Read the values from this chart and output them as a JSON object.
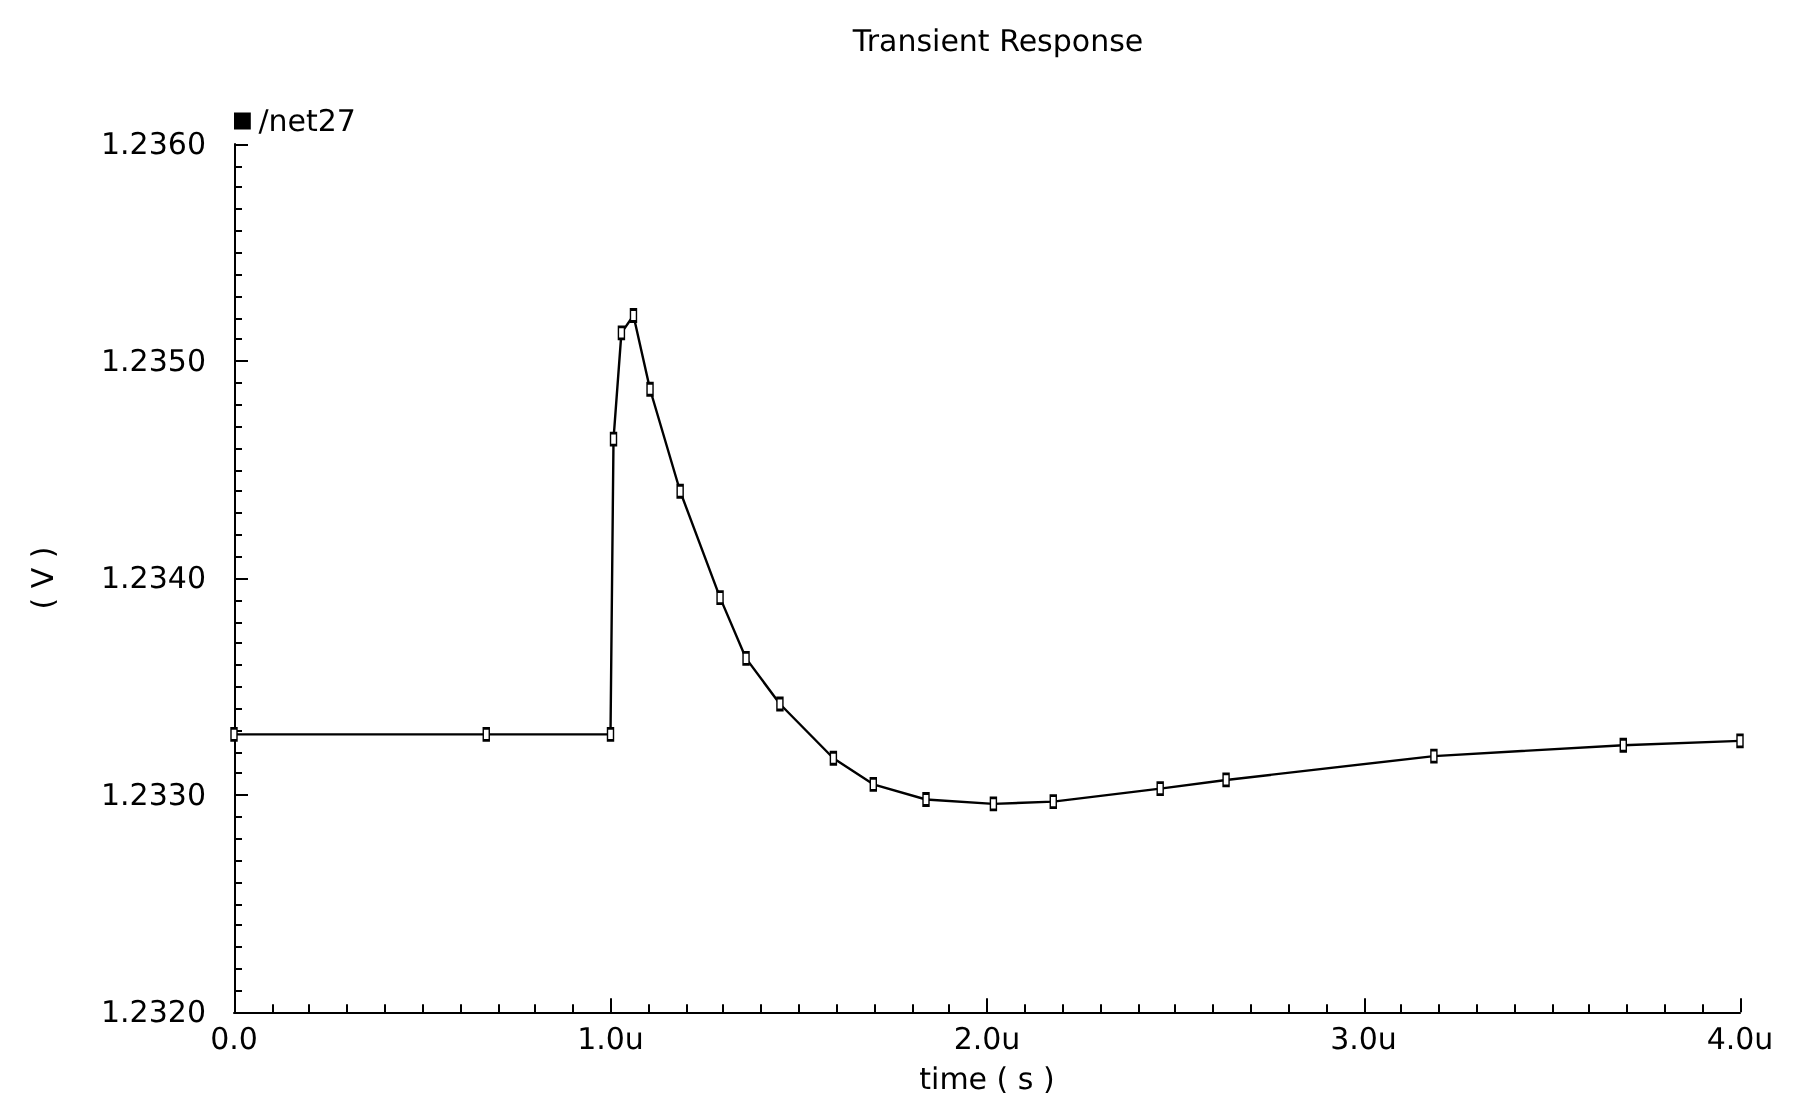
{
  "chart_data": {
    "type": "line",
    "title": "Transient Response",
    "xlabel": "time ( s )",
    "ylabel": "( V )",
    "x": [
      0,
      0.67,
      1.0,
      1.008,
      1.029,
      1.061,
      1.105,
      1.185,
      1.291,
      1.36,
      1.45,
      1.592,
      1.698,
      1.838,
      2.017,
      2.176,
      2.46,
      2.635,
      3.187,
      3.69,
      4.0
    ],
    "series": [
      {
        "name": "/net27",
        "color": "#000000",
        "values": [
          1.23328,
          1.23328,
          1.23328,
          1.23464,
          1.23513,
          1.23521,
          1.23487,
          1.2344,
          1.23391,
          1.23363,
          1.23342,
          1.23317,
          1.23305,
          1.23298,
          1.23296,
          1.23297,
          1.23303,
          1.23307,
          1.23318,
          1.23323,
          1.23325
        ]
      }
    ],
    "xlim": [
      0,
      4
    ],
    "xticks": [
      {
        "value": 0,
        "label": "0.0"
      },
      {
        "value": 1,
        "label": "1.0u"
      },
      {
        "value": 2,
        "label": "2.0u"
      },
      {
        "value": 3,
        "label": "3.0u"
      },
      {
        "value": 4,
        "label": "4.0u"
      }
    ],
    "ylim": [
      1.232,
      1.236
    ],
    "yticks": [
      {
        "value": 1.232,
        "label": "1.2320"
      },
      {
        "value": 1.233,
        "label": "1.2330"
      },
      {
        "value": 1.234,
        "label": "1.2340"
      },
      {
        "value": 1.235,
        "label": "1.2350"
      },
      {
        "value": 1.236,
        "label": "1.2360"
      }
    ],
    "grid": false,
    "legend": "top left",
    "marker": "square",
    "line_style": "solid"
  }
}
